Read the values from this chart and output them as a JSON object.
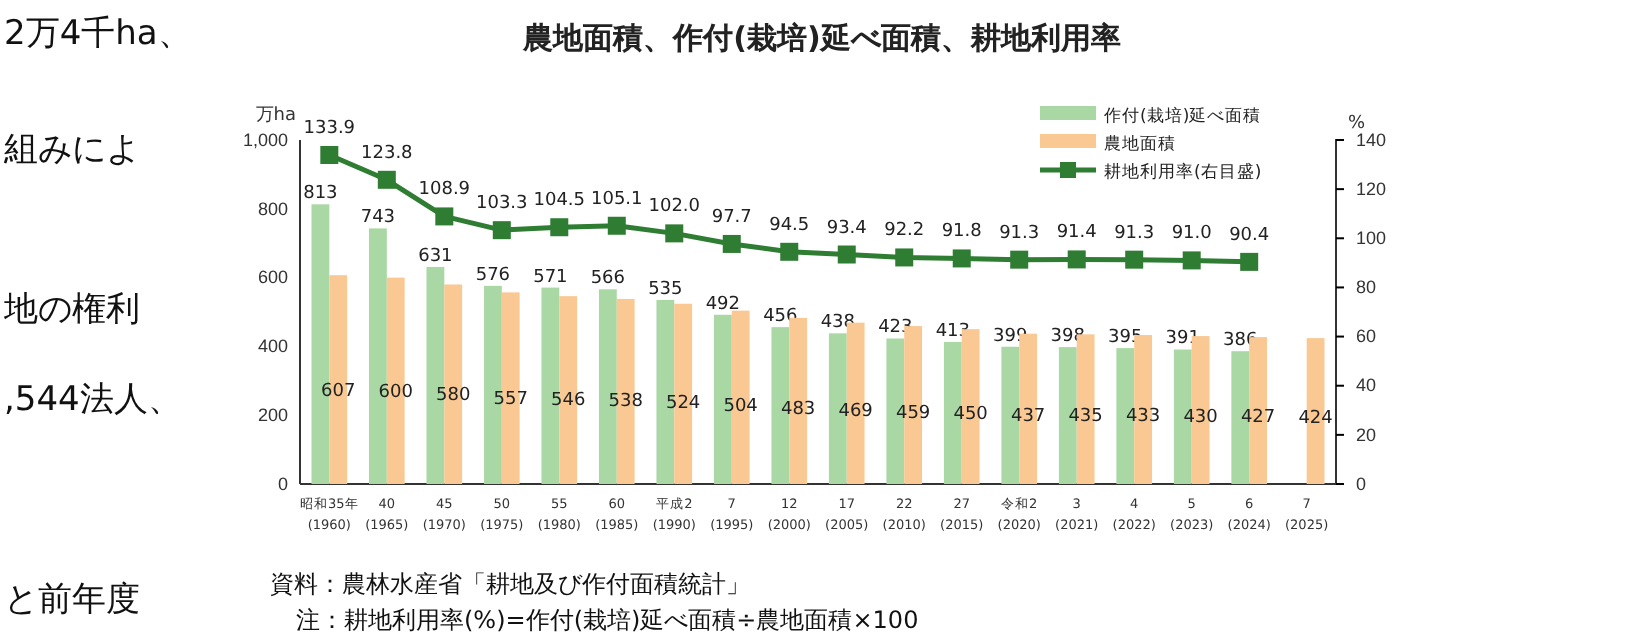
{
  "chart_data": {
    "type": "bar",
    "title": "農地面積、作付(栽培)延べ面積、耕地利用率",
    "ylabel": "万ha",
    "y2label": "%",
    "categories": [
      "昭和35年\n(1960)",
      "40\n(1965)",
      "45\n(1970)",
      "50\n(1975)",
      "55\n(1980)",
      "60\n(1985)",
      "平成2\n(1990)",
      "7\n(1995)",
      "12\n(2000)",
      "17\n(2005)",
      "22\n(2010)",
      "27\n(2015)",
      "令和2\n(2020)",
      "3\n(2021)",
      "4\n(2022)",
      "5\n(2023)",
      "6\n(2024)",
      "7\n(2025)"
    ],
    "series": [
      {
        "name": "作付(栽培)延べ面積",
        "color": "#a9d8a4",
        "values": [
          813,
          743,
          631,
          576,
          571,
          566,
          535,
          492,
          456,
          438,
          423,
          413,
          399,
          398,
          395,
          391,
          386,
          null
        ]
      },
      {
        "name": "農地面積",
        "color": "#f9c893",
        "values": [
          607,
          600,
          580,
          557,
          546,
          538,
          524,
          504,
          483,
          469,
          459,
          450,
          437,
          435,
          433,
          430,
          427,
          424
        ]
      },
      {
        "name": "耕地利用率(右目盛)",
        "type": "line",
        "axis": "y2",
        "color": "#2e7d32",
        "marker": "square",
        "values": [
          133.9,
          123.8,
          108.9,
          103.3,
          104.5,
          105.1,
          102.0,
          97.7,
          94.5,
          93.4,
          92.2,
          91.8,
          91.3,
          91.4,
          91.3,
          91.0,
          90.4,
          null
        ],
        "value_labels": [
          "133.9",
          "123.8",
          "108.9",
          "103.3",
          "104.5",
          "105.1",
          "102.0",
          "97.7",
          "94.5",
          "93.4",
          "92.2",
          "91.8",
          "91.3",
          "91.4",
          "91.3",
          "91.0",
          "90.4",
          null
        ]
      }
    ],
    "ylim": [
      0,
      1000
    ],
    "yticks": [
      0,
      200,
      400,
      600,
      800,
      {
        "value": 1000,
        "label": "1,000"
      }
    ],
    "y2lim": [
      0,
      140
    ],
    "y2ticks": [
      0,
      20,
      40,
      60,
      80,
      100,
      120,
      140
    ],
    "data_labels": true,
    "legend": "top right",
    "grid": false,
    "annotations": [
      "資料：農林水産省「耕地及び作付面積統計」",
      "注：耕地利用率(%)=作付(栽培)延べ面積÷農地面積×100",
      "2万4千ha、",
      "組みによ",
      "地の権利",
      ",544法人、",
      "と前年度"
    ]
  }
}
